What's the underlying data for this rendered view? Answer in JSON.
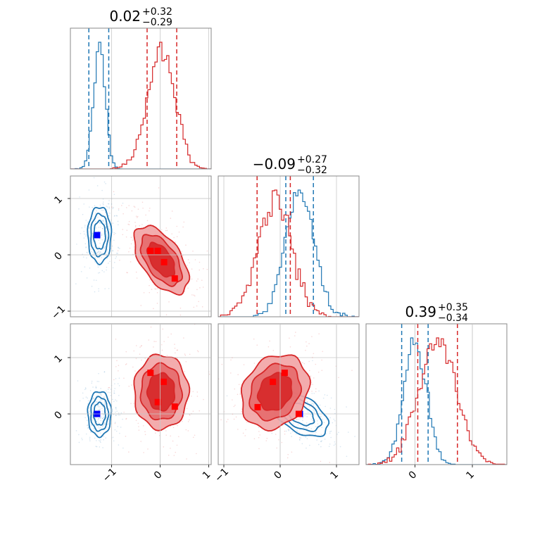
{
  "chart_data": {
    "type": "corner",
    "parameters": [
      {
        "title_main": "0.02",
        "title_plus": "+0.32",
        "title_minus": "−0.29",
        "range": [
          -1.85,
          1.05
        ],
        "ticks": [
          -1,
          0,
          1
        ]
      },
      {
        "title_main": "−0.09",
        "title_plus": "+0.27",
        "title_minus": "−0.32",
        "range": [
          -1.1,
          1.4
        ],
        "ticks": [
          -1,
          0,
          1
        ]
      },
      {
        "title_main": "0.39",
        "title_plus": "+0.35",
        "title_minus": "−0.34",
        "range": [
          -0.85,
          1.6
        ],
        "ticks": [
          0,
          1
        ]
      }
    ],
    "param2_y_range": [
      -1.1,
      1.4
    ],
    "param3_y_range": [
      -0.9,
      1.6
    ],
    "tick_labels": [
      "−1",
      "0",
      "1"
    ],
    "grid": true,
    "series": [
      {
        "color": "#1f77b4",
        "marker_color": "#0000ff",
        "filled": false,
        "mean": [
          -1.25,
          0.35,
          0.0
        ],
        "std": [
          0.12,
          0.25,
          0.2
        ],
        "corr12": 0.0,
        "corr13": 0.0,
        "corr23": -0.5,
        "quantiles": [
          [
            -1.47,
            -1.06
          ],
          [
            0.1,
            0.59
          ],
          [
            -0.23,
            0.23
          ]
        ],
        "markers_12": [
          [
            -1.3,
            0.35
          ]
        ],
        "markers_13": [
          [
            -1.3,
            0.0
          ]
        ],
        "markers_23": [
          [
            0.35,
            0.0
          ]
        ]
      },
      {
        "color": "#d62728",
        "marker_color": "#ff0000",
        "filled": true,
        "mean": [
          0.02,
          -0.09,
          0.39
        ],
        "std": [
          0.28,
          0.3,
          0.33
        ],
        "corr12": -0.55,
        "corr13": 0.0,
        "corr23": 0.2,
        "quantiles": [
          [
            -0.27,
            0.34
          ],
          [
            -0.41,
            0.18
          ],
          [
            0.05,
            0.74
          ]
        ],
        "markers_12": [
          [
            -0.2,
            0.07
          ],
          [
            -0.05,
            0.07
          ],
          [
            0.08,
            -0.13
          ],
          [
            0.3,
            -0.42
          ]
        ],
        "markers_13": [
          [
            -0.2,
            0.73
          ],
          [
            0.07,
            0.57
          ],
          [
            -0.05,
            0.21
          ],
          [
            0.3,
            0.13
          ]
        ],
        "markers_23": [
          [
            -0.4,
            0.12
          ],
          [
            -0.13,
            0.57
          ],
          [
            0.08,
            0.73
          ],
          [
            0.33,
            0.0
          ]
        ]
      }
    ]
  }
}
